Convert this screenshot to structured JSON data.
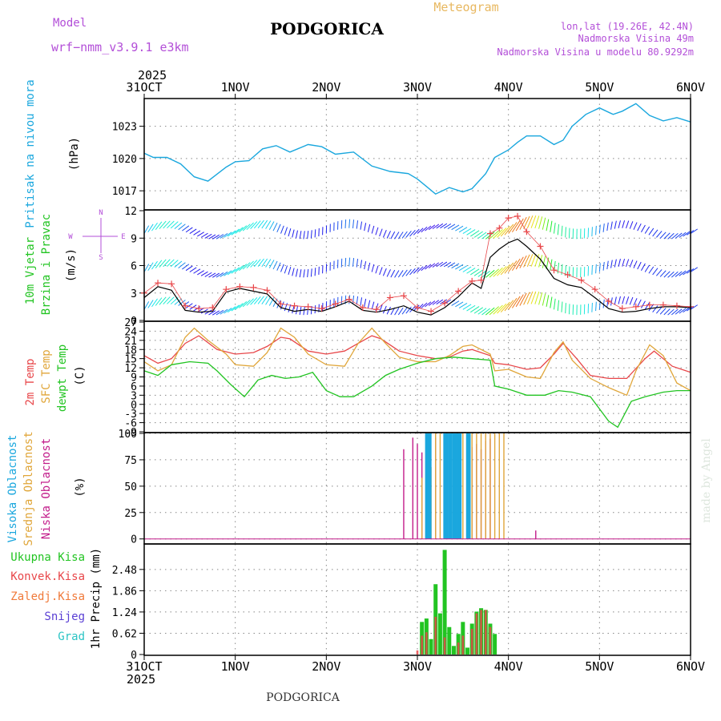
{
  "header": {
    "model_label": "Model",
    "model_name": "wrf−nmm_v3.9.1  e3km",
    "location": "PODGORICA",
    "product": "Meteogram",
    "lonlat": "lon,lat (19.26E, 42.4N)",
    "elevation": "Nadmorska Visina 49m",
    "model_elevation": "Nadmorska Visina u modelu 80.9292m",
    "footer_location": "PODGORICA",
    "credit": "made by Angel",
    "year": "2025"
  },
  "colors": {
    "pressure": "#1aa7de",
    "t2m": "#e8474a",
    "tsfc": "#e0a63a",
    "dewpt": "#22c422",
    "wind_speed": "#000000",
    "gust": "#e8474a",
    "cloud_high": "#1aa7de",
    "cloud_mid": "#e0a63a",
    "cloud_low": "#c21c8a",
    "precip_total": "#22c422",
    "precip_conv": "#e8474a",
    "precip_frz": "#f07a3a",
    "precip_snow": "#5a3fd4",
    "precip_graupel": "#2bc4c4",
    "model_text": "#b34fd8",
    "meteogram_text": "#e8b860"
  },
  "chart_data": [
    {
      "type": "line",
      "id": "pressure",
      "ylabel_name": "Pritisak na nivou mora",
      "ylabel_unit": "(hPa)",
      "x_ticks": [
        "31OCT",
        "1NOV",
        "2NOV",
        "3NOV",
        "4NOV",
        "5NOV",
        "6NOV"
      ],
      "ylim": [
        1015.3,
        1025.5
      ],
      "y_ticks": [
        "1017",
        "1020",
        "1023"
      ],
      "series": [
        {
          "name": "pressure",
          "x": [
            0,
            0.1,
            0.25,
            0.4,
            0.55,
            0.7,
            0.9,
            1.0,
            1.15,
            1.3,
            1.45,
            1.6,
            1.8,
            1.95,
            2.1,
            2.3,
            2.5,
            2.7,
            2.9,
            3.0,
            3.1,
            3.2,
            3.35,
            3.5,
            3.6,
            3.75,
            3.85,
            4.0,
            4.1,
            4.2,
            4.35,
            4.5,
            4.6,
            4.7,
            4.85,
            5.0,
            5.15,
            5.25,
            5.4,
            5.55,
            5.7,
            5.85,
            6.0
          ],
          "values": [
            1020.5,
            1020.1,
            1020.1,
            1019.5,
            1018.3,
            1017.9,
            1019.2,
            1019.7,
            1019.8,
            1020.9,
            1021.2,
            1020.6,
            1021.3,
            1021.1,
            1020.4,
            1020.6,
            1019.3,
            1018.8,
            1018.6,
            1018.1,
            1017.4,
            1016.7,
            1017.3,
            1016.9,
            1017.2,
            1018.6,
            1020.1,
            1020.8,
            1021.5,
            1022.1,
            1022.1,
            1021.3,
            1021.7,
            1023.0,
            1024.1,
            1024.7,
            1024.1,
            1024.4,
            1025.1,
            1024.0,
            1023.5,
            1023.8,
            1023.4
          ]
        }
      ]
    },
    {
      "type": "line",
      "id": "wind",
      "ylabel_name": "10m Vjetar",
      "ylabel_name2": "Brzina i Pravac",
      "ylabel_unit": "(m/s)",
      "compass": {
        "n": "N",
        "s": "S",
        "w": "W",
        "e": "E"
      },
      "ylim": [
        0,
        12
      ],
      "y_ticks": [
        "0",
        "3",
        "6",
        "9",
        "12"
      ],
      "series": [
        {
          "name": "speed",
          "x": [
            0,
            0.15,
            0.3,
            0.45,
            0.6,
            0.75,
            0.9,
            1.05,
            1.2,
            1.35,
            1.5,
            1.65,
            1.8,
            1.95,
            2.1,
            2.25,
            2.4,
            2.55,
            2.7,
            2.85,
            3.0,
            3.15,
            3.3,
            3.45,
            3.6,
            3.7,
            3.8,
            3.9,
            4.0,
            4.1,
            4.2,
            4.35,
            4.5,
            4.65,
            4.8,
            4.95,
            5.1,
            5.25,
            5.4,
            5.55,
            5.7,
            5.85,
            6.0
          ],
          "values": [
            2.5,
            3.7,
            3.3,
            1.1,
            0.9,
            1.0,
            3.1,
            3.5,
            3.2,
            2.9,
            1.4,
            1.0,
            1.2,
            1.0,
            1.5,
            2.1,
            1.1,
            0.9,
            1.2,
            1.6,
            0.9,
            0.6,
            1.4,
            2.6,
            4.1,
            3.5,
            6.9,
            7.8,
            8.5,
            8.9,
            8.1,
            6.7,
            4.6,
            3.9,
            3.6,
            2.5,
            1.3,
            0.9,
            1.0,
            1.3,
            1.5,
            1.5,
            1.4
          ]
        },
        {
          "name": "gust",
          "x": [
            0,
            0.15,
            0.3,
            0.45,
            0.6,
            0.75,
            0.9,
            1.05,
            1.2,
            1.35,
            1.5,
            1.65,
            1.8,
            1.95,
            2.1,
            2.25,
            2.4,
            2.55,
            2.7,
            2.85,
            3.0,
            3.15,
            3.3,
            3.45,
            3.6,
            3.7,
            3.8,
            3.9,
            4.0,
            4.1,
            4.2,
            4.35,
            4.5,
            4.65,
            4.8,
            4.95,
            5.1,
            5.25,
            5.4,
            5.55,
            5.7,
            5.85,
            6.0
          ],
          "values": [
            3.0,
            4.1,
            4.0,
            1.6,
            1.3,
            1.4,
            3.4,
            3.7,
            3.6,
            3.3,
            1.8,
            1.6,
            1.5,
            1.3,
            1.8,
            2.3,
            1.4,
            1.2,
            2.5,
            2.7,
            1.4,
            1.0,
            1.9,
            3.2,
            4.3,
            4.4,
            9.5,
            10.1,
            11.2,
            11.4,
            9.7,
            8.1,
            5.5,
            5.0,
            4.4,
            3.4,
            2.1,
            1.3,
            1.5,
            1.7,
            1.7,
            1.6,
            1.5
          ]
        }
      ]
    },
    {
      "type": "line",
      "id": "temperature",
      "ylabel_t2m": "2m Temp",
      "ylabel_tsfc": "SFC Temp",
      "ylabel_dew": "dewpt Temp",
      "ylabel_unit": "(C)",
      "ylim": [
        -9,
        27
      ],
      "y_ticks": [
        "-9",
        "-6",
        "-3",
        "0",
        "3",
        "6",
        "9",
        "12",
        "15",
        "18",
        "21",
        "24",
        "27"
      ],
      "series": [
        {
          "name": "t2m",
          "x": [
            0,
            0.15,
            0.3,
            0.45,
            0.6,
            0.8,
            1.0,
            1.2,
            1.35,
            1.5,
            1.6,
            1.8,
            2.0,
            2.2,
            2.35,
            2.5,
            2.6,
            2.8,
            3.0,
            3.2,
            3.35,
            3.5,
            3.6,
            3.7,
            3.8,
            3.85,
            4.0,
            4.2,
            4.35,
            4.5,
            4.6,
            4.75,
            4.9,
            5.1,
            5.3,
            5.5,
            5.6,
            5.8,
            6.0
          ],
          "values": [
            16,
            13.5,
            15,
            20,
            22.5,
            18,
            16.5,
            17,
            19,
            22,
            21.5,
            17.5,
            16.5,
            17.5,
            20,
            22.5,
            21.5,
            17.5,
            16,
            15,
            15.5,
            17.5,
            18,
            17,
            16,
            13.5,
            13,
            11.5,
            12,
            16.5,
            20,
            15,
            9.5,
            8.5,
            8.5,
            15,
            17.5,
            12.5,
            10.5
          ]
        },
        {
          "name": "tsfc",
          "x": [
            0,
            0.15,
            0.3,
            0.45,
            0.55,
            0.7,
            0.9,
            1.0,
            1.2,
            1.35,
            1.5,
            1.65,
            1.8,
            2.0,
            2.2,
            2.35,
            2.5,
            2.65,
            2.8,
            3.0,
            3.2,
            3.35,
            3.5,
            3.6,
            3.7,
            3.8,
            3.85,
            4.0,
            4.2,
            4.35,
            4.5,
            4.6,
            4.7,
            4.9,
            5.1,
            5.3,
            5.4,
            5.55,
            5.7,
            5.85,
            6.0
          ],
          "values": [
            14,
            11,
            13,
            22,
            25,
            21,
            16.5,
            13,
            12.5,
            17,
            25,
            22,
            16.5,
            13,
            12.5,
            20,
            25,
            20,
            15.5,
            14,
            14,
            16,
            19,
            19.5,
            18,
            16.5,
            11,
            11.5,
            9,
            8.5,
            17,
            20.5,
            14.5,
            8.5,
            5.5,
            3,
            11,
            19.5,
            16,
            7,
            4.5
          ]
        },
        {
          "name": "dewpt",
          "x": [
            0,
            0.15,
            0.3,
            0.5,
            0.7,
            0.8,
            0.95,
            1.1,
            1.25,
            1.4,
            1.55,
            1.7,
            1.85,
            2.0,
            2.15,
            2.3,
            2.5,
            2.65,
            2.8,
            3.0,
            3.2,
            3.4,
            3.6,
            3.8,
            3.85,
            4.0,
            4.2,
            4.4,
            4.55,
            4.7,
            4.9,
            5.1,
            5.2,
            5.35,
            5.5,
            5.7,
            5.85,
            6.0
          ],
          "values": [
            11,
            9.5,
            13,
            14,
            13.5,
            11,
            6.5,
            2.5,
            8,
            9.5,
            8.5,
            9,
            10.5,
            4.5,
            2.5,
            2.5,
            6,
            9.5,
            11.5,
            13.5,
            15,
            15.5,
            15,
            14.5,
            6,
            5,
            3,
            3,
            4.5,
            4,
            2.5,
            -5.5,
            -7.5,
            1,
            2.5,
            4,
            4.5,
            4.5
          ]
        }
      ]
    },
    {
      "type": "bar",
      "id": "clouds",
      "ylabel_high": "Visoka Oblacnost",
      "ylabel_mid": "Srednja Oblacnost",
      "ylabel_low": "Niska Oblacnost",
      "ylabel_unit": "(%)",
      "ylim": [
        -4,
        100
      ],
      "y_ticks": [
        "0",
        "25",
        "50",
        "75",
        "100"
      ],
      "series": [
        {
          "name": "low",
          "x": [
            2.85,
            2.95,
            3.0,
            3.05,
            3.2,
            3.3,
            3.55,
            3.6,
            3.65,
            3.7,
            3.75,
            3.8,
            4.3
          ],
          "values": [
            85,
            96,
            90,
            82,
            96,
            80,
            94,
            87,
            90,
            85,
            93,
            95,
            8
          ]
        },
        {
          "name": "mid",
          "x": [
            3.05,
            3.15,
            3.2,
            3.25,
            3.35,
            3.45,
            3.5,
            3.6,
            3.65,
            3.7,
            3.75,
            3.8,
            3.85,
            3.9,
            3.95
          ],
          "values": [
            58,
            68,
            100,
            100,
            100,
            100,
            100,
            100,
            100,
            100,
            100,
            100,
            100,
            100,
            100
          ]
        },
        {
          "name": "high",
          "x": [
            3.1,
            3.12,
            3.14,
            3.3,
            3.32,
            3.35,
            3.37,
            3.4,
            3.42,
            3.45,
            3.47,
            3.55,
            3.57
          ],
          "values": [
            100,
            100,
            100,
            100,
            100,
            100,
            100,
            100,
            100,
            100,
            100,
            100,
            100
          ]
        }
      ]
    },
    {
      "type": "bar",
      "id": "precip",
      "ylabel_total": "Ukupna Kisa",
      "ylabel_conv": "Konvek.Kisa",
      "ylabel_frz": "Zaledj.Kisa",
      "ylabel_snow": "Snijeg",
      "ylabel_graupel": "Grad",
      "ylabel_unit": "1hr Precip (mm)",
      "ylim": [
        0,
        3.2
      ],
      "y_ticks": [
        "0",
        "0.62",
        "1.24",
        "1.86",
        "2.48"
      ],
      "series": [
        {
          "name": "total",
          "x": [
            3.05,
            3.1,
            3.15,
            3.2,
            3.25,
            3.3,
            3.35,
            3.4,
            3.45,
            3.5,
            3.55,
            3.6,
            3.65,
            3.7,
            3.75,
            3.8,
            3.85
          ],
          "values": [
            0.95,
            1.05,
            0.45,
            2.05,
            1.2,
            3.05,
            0.8,
            0.25,
            0.6,
            0.95,
            0.2,
            0.9,
            1.25,
            1.35,
            1.3,
            0.9,
            0.6
          ]
        },
        {
          "name": "conv",
          "x": [
            3.0,
            3.05,
            3.1,
            3.2,
            3.3,
            3.45,
            3.5,
            3.6,
            3.65,
            3.7,
            3.75,
            3.8
          ],
          "values": [
            0.12,
            0.55,
            0.65,
            1.1,
            0.5,
            0.35,
            0.55,
            0.75,
            1.2,
            1.3,
            1.3,
            0.8
          ]
        }
      ]
    }
  ]
}
